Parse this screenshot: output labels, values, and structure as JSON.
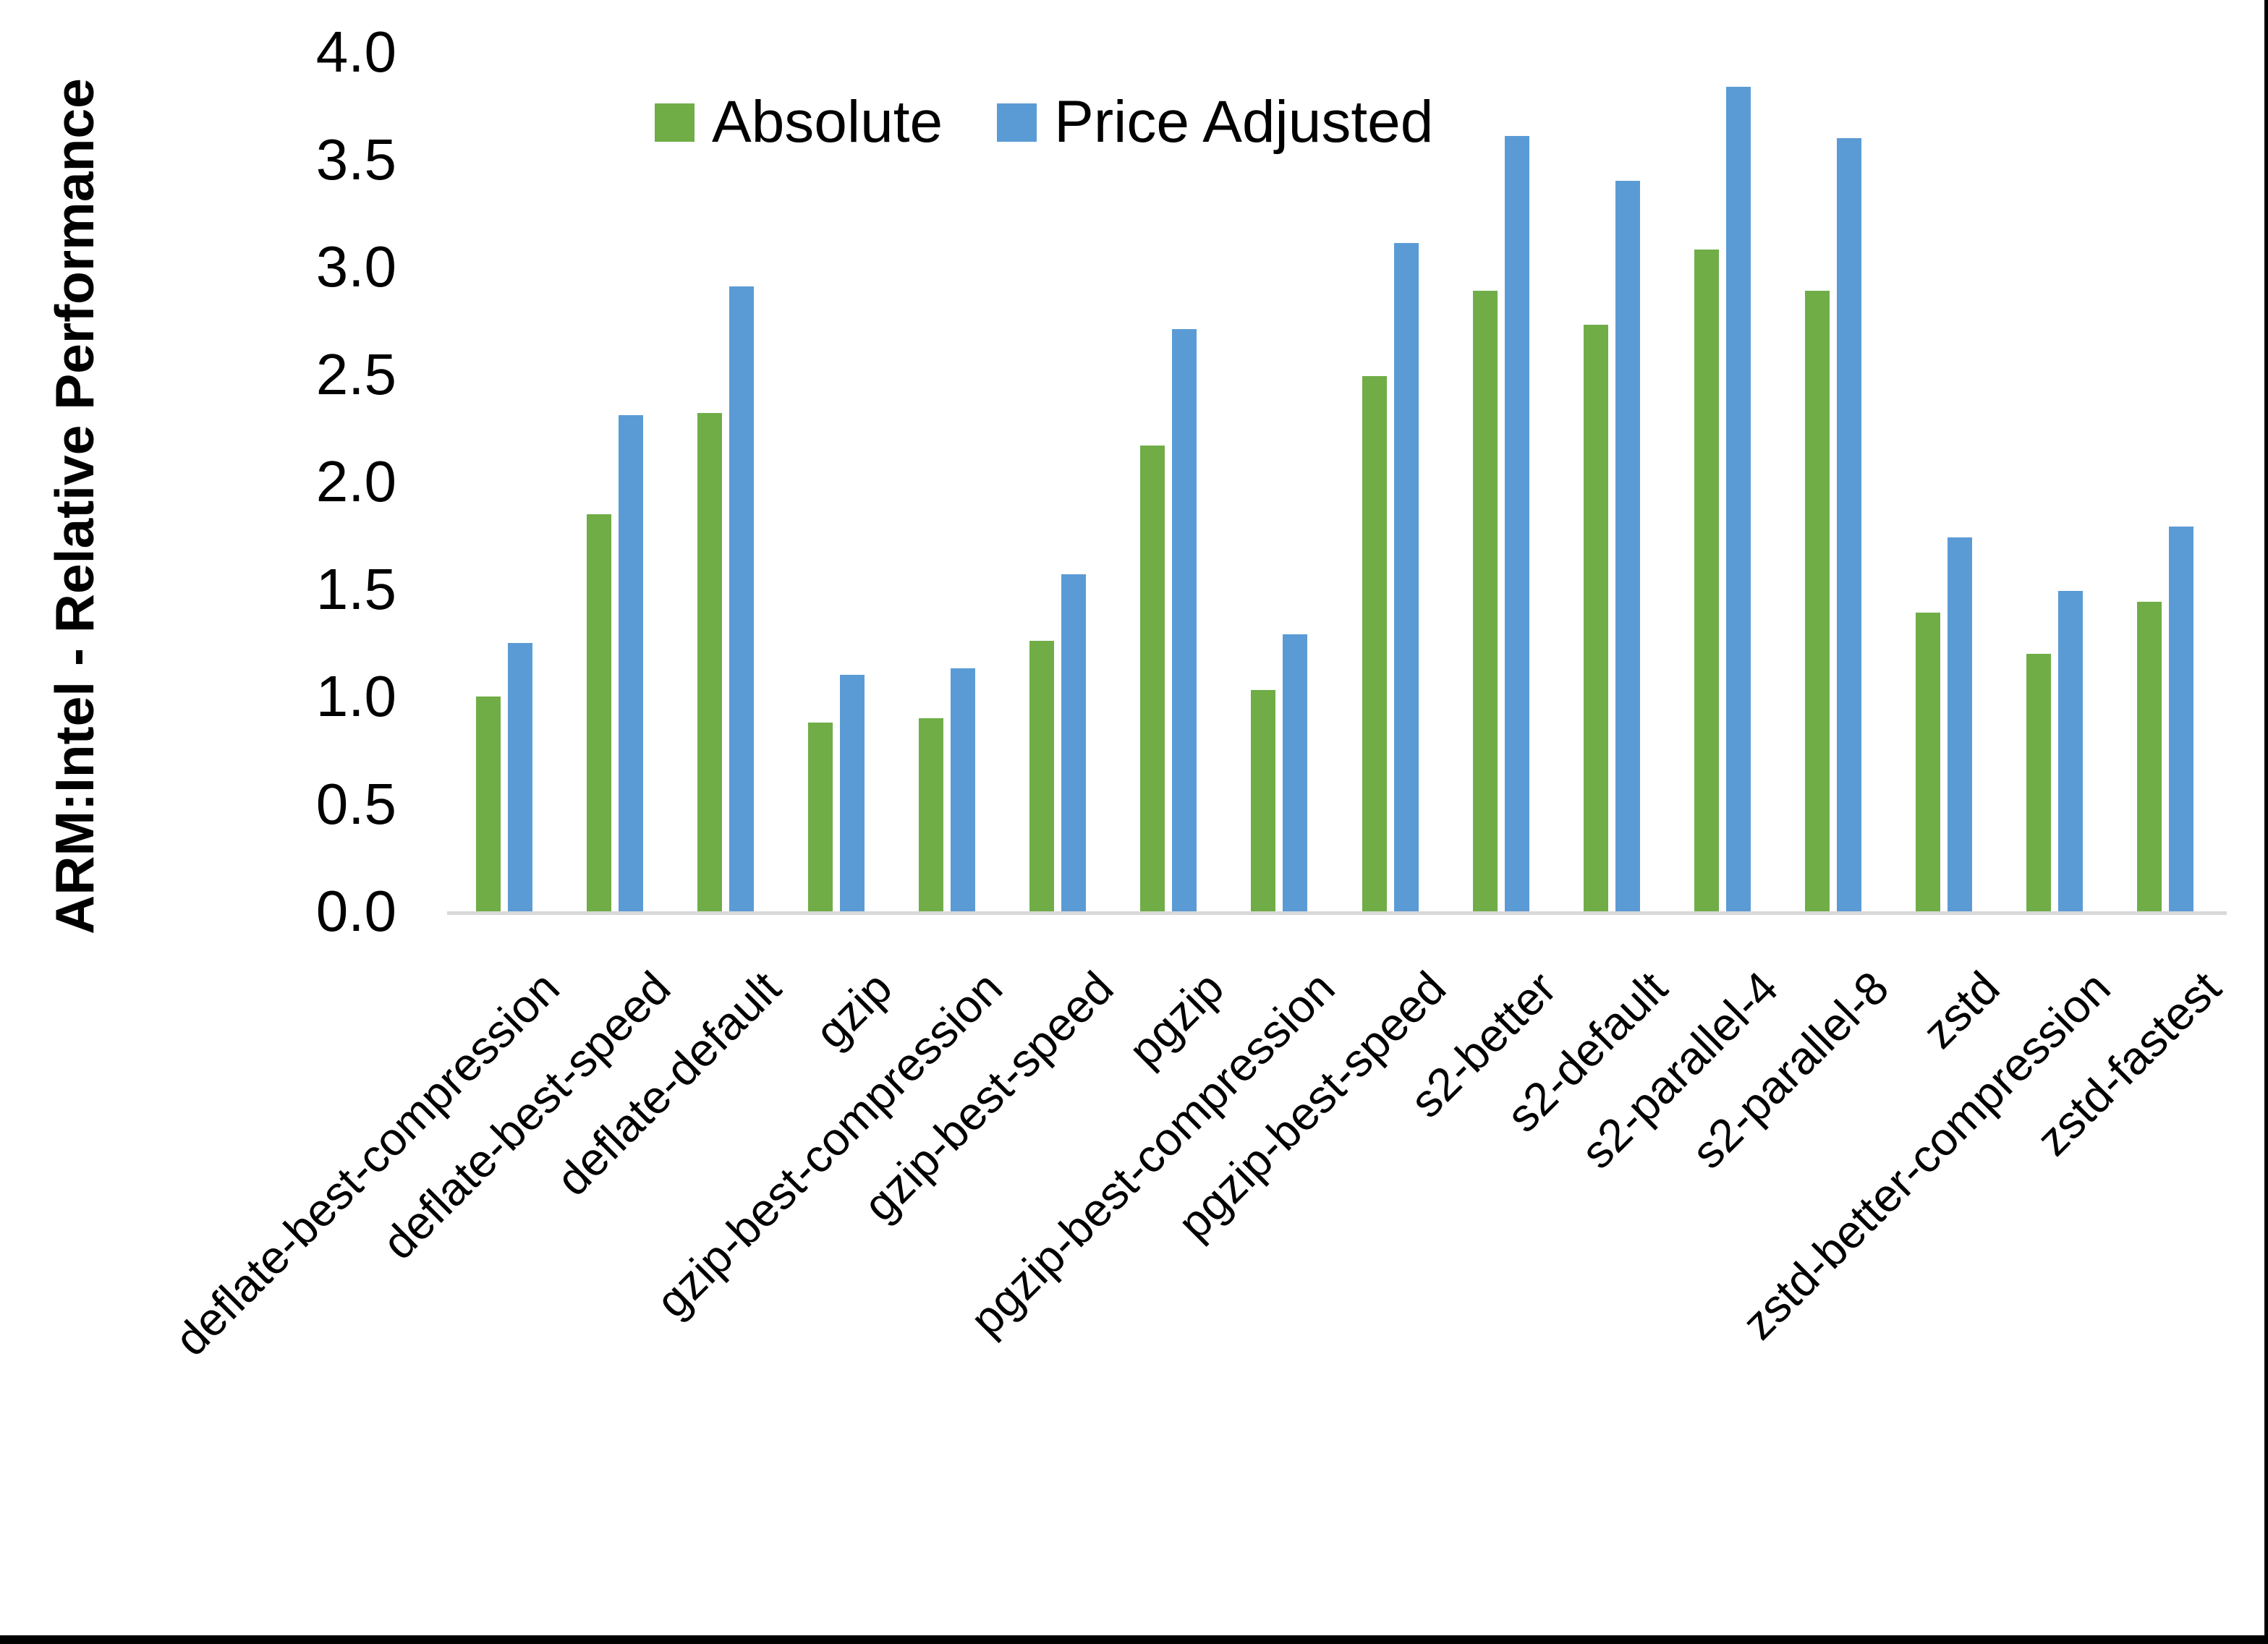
{
  "chart_data": {
    "type": "bar",
    "title": "",
    "xlabel": "",
    "ylabel": "ARM:Intel - Relative Performance",
    "ylim": [
      0.0,
      4.0
    ],
    "ytick_step": 0.5,
    "ytick_labels": [
      "0.0",
      "0.5",
      "1.0",
      "1.5",
      "2.0",
      "2.5",
      "3.0",
      "3.5",
      "4.0"
    ],
    "grid": "off",
    "legend_position": "top-center",
    "axis_line_color": "#D9D9D9",
    "text_color": "#000000",
    "categories": [
      "deflate-best-compression",
      "deflate-best-speed",
      "deflate-default",
      "gzip",
      "gzip-best-compression",
      "gzip-best-speed",
      "pgzip",
      "pgzip-best-compression",
      "pgzip-best-speed",
      "s2-better",
      "s2-default",
      "s2-parallel-4",
      "s2-parallel-8",
      "zstd",
      "zstd-better-compression",
      "zstd-fastest"
    ],
    "series": [
      {
        "name": "Absolute",
        "color": "#70AD47",
        "values": [
          1.0,
          1.85,
          2.32,
          0.88,
          0.9,
          1.26,
          2.17,
          1.03,
          2.49,
          2.89,
          2.73,
          3.08,
          2.89,
          1.39,
          1.2,
          1.44
        ]
      },
      {
        "name": "Price Adjusted",
        "color": "#5B9BD5",
        "values": [
          1.25,
          2.31,
          2.91,
          1.1,
          1.13,
          1.57,
          2.71,
          1.29,
          3.11,
          3.61,
          3.4,
          3.84,
          3.6,
          1.74,
          1.49,
          1.79
        ]
      }
    ]
  }
}
